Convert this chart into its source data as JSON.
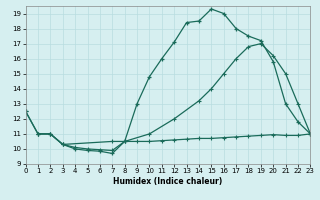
{
  "line1_x": [
    0,
    1,
    2,
    3,
    4,
    5,
    6,
    7,
    8,
    9,
    10,
    11,
    12,
    13,
    14,
    15,
    16,
    17,
    18,
    19,
    20,
    21,
    22,
    23
  ],
  "line1_y": [
    12.5,
    11.0,
    11.0,
    10.3,
    10.0,
    9.9,
    9.85,
    9.7,
    10.5,
    13.0,
    14.8,
    16.0,
    17.1,
    18.4,
    18.5,
    19.3,
    19.0,
    18.0,
    17.5,
    17.2,
    15.8,
    13.0,
    11.8,
    11.0
  ],
  "line2_x": [
    0,
    1,
    2,
    3,
    7,
    8,
    10,
    12,
    14,
    15,
    16,
    17,
    18,
    19,
    20,
    21,
    22,
    23
  ],
  "line2_y": [
    12.5,
    11.0,
    11.0,
    10.3,
    10.5,
    10.5,
    11.0,
    12.0,
    13.2,
    14.0,
    15.0,
    16.0,
    16.8,
    17.0,
    16.2,
    15.0,
    13.0,
    11.0
  ],
  "line3_x": [
    1,
    2,
    3,
    4,
    5,
    6,
    7,
    8,
    9,
    10,
    11,
    12,
    13,
    14,
    15,
    16,
    17,
    18,
    19,
    20,
    21,
    22,
    23
  ],
  "line3_y": [
    11.0,
    11.0,
    10.3,
    10.1,
    10.0,
    9.95,
    9.9,
    10.5,
    10.5,
    10.5,
    10.55,
    10.6,
    10.65,
    10.7,
    10.7,
    10.75,
    10.8,
    10.85,
    10.9,
    10.95,
    10.9,
    10.9,
    11.0
  ],
  "color": "#1a6b5a",
  "bg_color": "#d6eff0",
  "grid_color": "#b8dde0",
  "xlabel": "Humidex (Indice chaleur)",
  "xlim": [
    0,
    23
  ],
  "ylim": [
    9,
    19.5
  ],
  "yticks": [
    9,
    10,
    11,
    12,
    13,
    14,
    15,
    16,
    17,
    18,
    19
  ],
  "xticks": [
    0,
    1,
    2,
    3,
    4,
    5,
    6,
    7,
    8,
    9,
    10,
    11,
    12,
    13,
    14,
    15,
    16,
    17,
    18,
    19,
    20,
    21,
    22,
    23
  ]
}
